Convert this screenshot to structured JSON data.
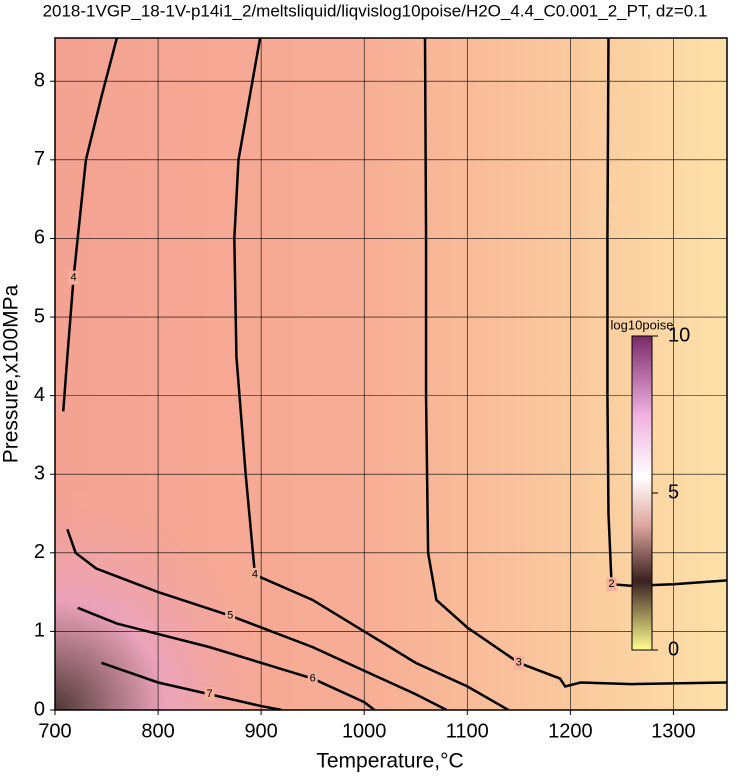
{
  "chart_data": {
    "type": "contour",
    "title": "2018-1VGP_18-1V-p14i1_2/meltsliquid/liqvislog10poise/H2O_4.4_C0.001_2_PT, dz=0.1",
    "x_label": "Temperature,°C",
    "y_label": "Pressure,x100MPa",
    "xlim": [
      700,
      1352
    ],
    "ylim": [
      0,
      8.55
    ],
    "xticks": [
      700,
      800,
      900,
      1000,
      1100,
      1200,
      1300
    ],
    "yticks": [
      0,
      1,
      2,
      3,
      4,
      5,
      6,
      7,
      8
    ],
    "grid": true,
    "colorbar": {
      "label": "log10poise",
      "lim": [
        0,
        10
      ],
      "ticks": [
        0,
        5,
        10
      ]
    },
    "contours": [
      {
        "level": 2,
        "x": [
          1237,
          1236,
          1236,
          1237,
          1240,
          1260,
          1300,
          1352
        ],
        "y": [
          8.55,
          6.0,
          4.0,
          2.5,
          1.6,
          1.58,
          1.6,
          1.65
        ]
      },
      {
        "level": 3,
        "x": [
          1059,
          1060,
          1060,
          1062,
          1070,
          1100,
          1150,
          1190,
          1195,
          1210,
          1260,
          1352
        ],
        "y": [
          8.55,
          6.0,
          4.0,
          2.0,
          1.4,
          1.05,
          0.6,
          0.4,
          0.3,
          0.35,
          0.33,
          0.35
        ]
      },
      {
        "level": 4,
        "x": [
          899,
          878,
          874,
          876,
          885,
          894,
          950,
          1000,
          1050,
          1100,
          1140
        ],
        "y": [
          8.55,
          7.0,
          6.0,
          4.5,
          3.0,
          1.72,
          1.4,
          1.0,
          0.6,
          0.3,
          0.0
        ]
      },
      {
        "level": 4,
        "x": [
          760,
          745,
          730,
          718,
          712,
          708
        ],
        "y": [
          8.55,
          7.8,
          7.0,
          5.5,
          4.5,
          3.8
        ]
      },
      {
        "level": 5,
        "x": [
          712,
          720,
          740,
          800,
          870,
          950,
          1000,
          1050,
          1080
        ],
        "y": [
          2.3,
          2.0,
          1.8,
          1.5,
          1.2,
          0.8,
          0.5,
          0.2,
          0.0
        ]
      },
      {
        "level": 6,
        "x": [
          722,
          760,
          850,
          950,
          1000,
          1010
        ],
        "y": [
          1.3,
          1.1,
          0.8,
          0.4,
          0.1,
          0.0
        ]
      },
      {
        "level": 7,
        "x": [
          745,
          800,
          850,
          900,
          920
        ],
        "y": [
          0.6,
          0.35,
          0.2,
          0.05,
          0.0
        ]
      }
    ]
  }
}
